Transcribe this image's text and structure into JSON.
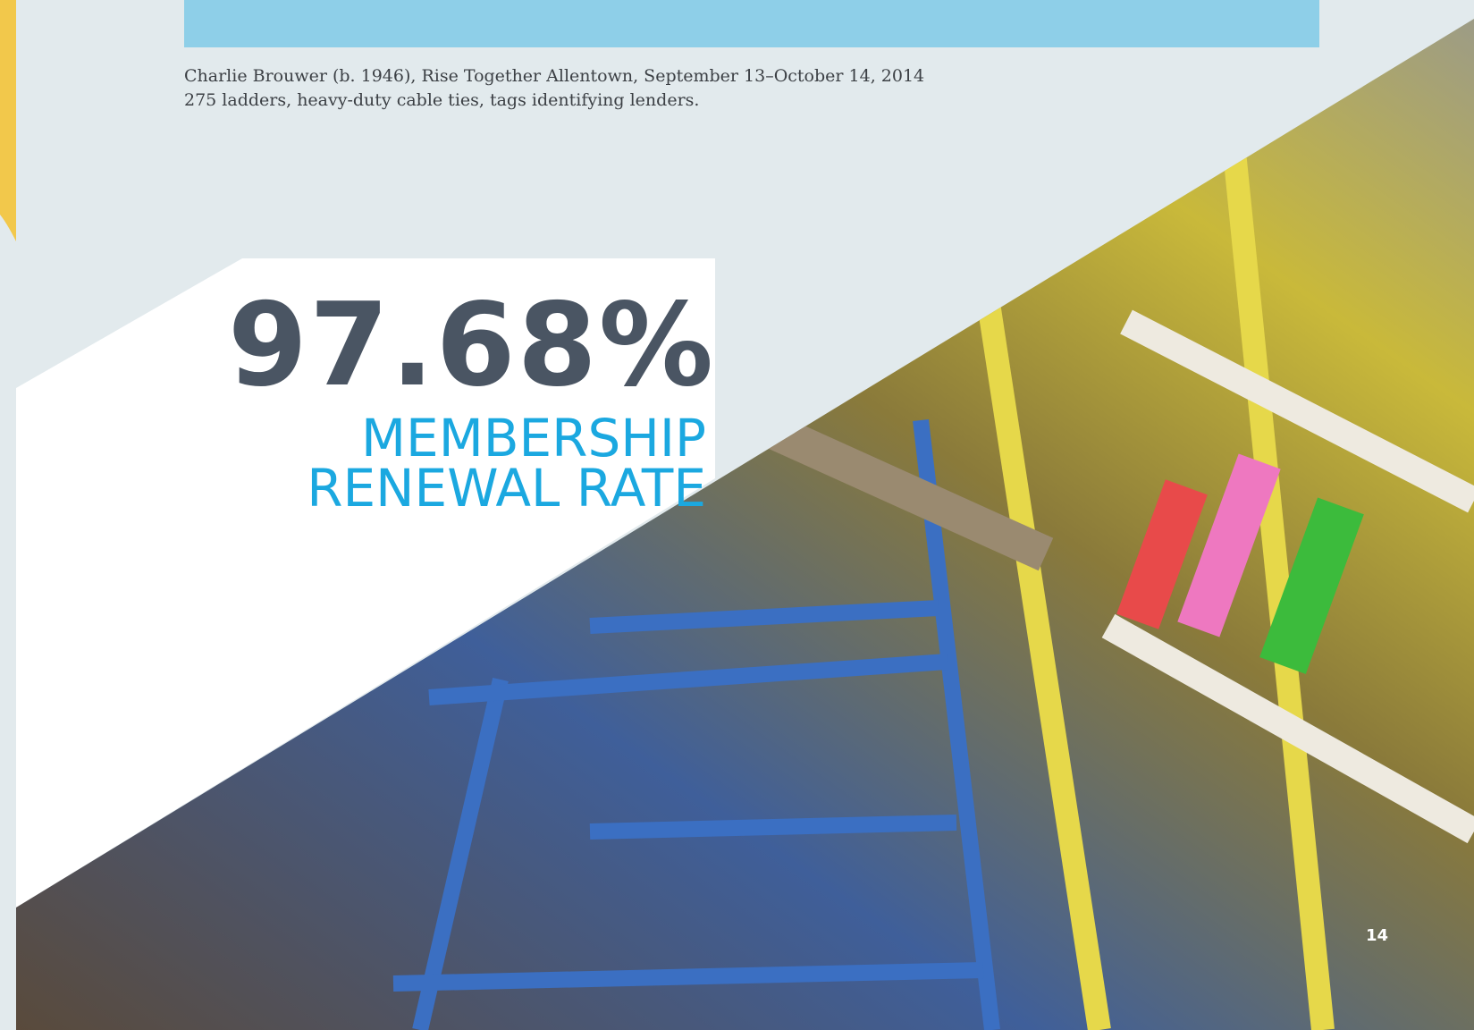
{
  "caption": {
    "lines": [
      "Charlie Brouwer (b. 1946), Rise Together Allentown, September 13–October 14, 2014",
      "275 ladders, heavy-duty cable ties, tags identifying lenders."
    ]
  },
  "stat": {
    "value": "97.68%",
    "label_lines": [
      "MEMBERSHIP",
      "RENEWAL RATE"
    ]
  },
  "page_number": "14"
}
